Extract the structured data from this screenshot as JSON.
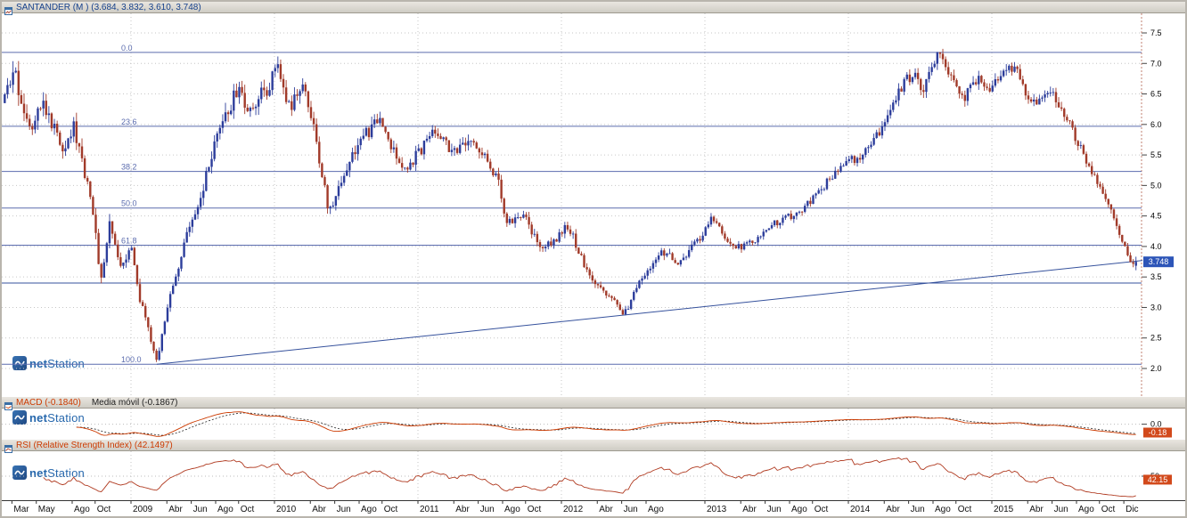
{
  "branding": {
    "bold": "net",
    "rest": "Station"
  },
  "colors": {
    "up": "#2c3d9b",
    "down": "#a13a29",
    "fib": "#5b6cae",
    "trend": "#35519c",
    "grid": "#c6c6c6",
    "macd": "#cc3a00",
    "macd_signal": "#222222",
    "rsi": "#b03a20",
    "badge_main": "#2d55b8",
    "badge_osc": "#d2491b",
    "title_main": "#16418c",
    "title_osc": "#cc3a00"
  },
  "panels": {
    "main": {
      "title": "SANTANDER (M ) (3.684, 3.832, 3.610, 3.748)",
      "price_badge": "3.748"
    },
    "macd": {
      "title": "MACD (-0.1840)",
      "title2": "Media móvil (-0.1867)",
      "badge": "-0.18",
      "zero_label": "0.0"
    },
    "rsi": {
      "title": "RSI (Relative Strength Index) (42.1497)",
      "badge": "42.15",
      "mid_label": "50"
    }
  },
  "time_axis": {
    "labels": [
      {
        "t": 2008.17,
        "label": "Mar"
      },
      {
        "t": 2008.34,
        "label": "May"
      },
      {
        "t": 2008.59,
        "label": "Ago"
      },
      {
        "t": 2008.75,
        "label": "Oct"
      },
      {
        "t": 2009.0,
        "label": "2009"
      },
      {
        "t": 2009.25,
        "label": "Abr"
      },
      {
        "t": 2009.42,
        "label": "Jun"
      },
      {
        "t": 2009.59,
        "label": "Ago"
      },
      {
        "t": 2009.75,
        "label": "Oct"
      },
      {
        "t": 2010.0,
        "label": "2010"
      },
      {
        "t": 2010.25,
        "label": "Abr"
      },
      {
        "t": 2010.42,
        "label": "Jun"
      },
      {
        "t": 2010.59,
        "label": "Ago"
      },
      {
        "t": 2010.75,
        "label": "Oct"
      },
      {
        "t": 2011.0,
        "label": "2011"
      },
      {
        "t": 2011.25,
        "label": "Abr"
      },
      {
        "t": 2011.42,
        "label": "Jun"
      },
      {
        "t": 2011.59,
        "label": "Ago"
      },
      {
        "t": 2011.75,
        "label": "Oct"
      },
      {
        "t": 2012.0,
        "label": "2012"
      },
      {
        "t": 2012.25,
        "label": "Abr"
      },
      {
        "t": 2012.42,
        "label": "Jun"
      },
      {
        "t": 2012.59,
        "label": "Ago"
      },
      {
        "t": 2013.0,
        "label": "2013"
      },
      {
        "t": 2013.25,
        "label": "Abr"
      },
      {
        "t": 2013.42,
        "label": "Jun"
      },
      {
        "t": 2013.59,
        "label": "Ago"
      },
      {
        "t": 2013.75,
        "label": "Oct"
      },
      {
        "t": 2014.0,
        "label": "2014"
      },
      {
        "t": 2014.25,
        "label": "Abr"
      },
      {
        "t": 2014.42,
        "label": "Jun"
      },
      {
        "t": 2014.59,
        "label": "Ago"
      },
      {
        "t": 2014.75,
        "label": "Oct"
      },
      {
        "t": 2015.0,
        "label": "2015"
      },
      {
        "t": 2015.25,
        "label": "Abr"
      },
      {
        "t": 2015.42,
        "label": "Jun"
      },
      {
        "t": 2015.59,
        "label": "Ago"
      },
      {
        "t": 2015.75,
        "label": "Oct"
      },
      {
        "t": 2015.92,
        "label": "Dic"
      }
    ]
  },
  "chart_data": {
    "type": "candlestick",
    "symbol": "SANTANDER",
    "timeframe": "M",
    "last_ohlc": {
      "open": 3.684,
      "high": 3.832,
      "low": 3.61,
      "close": 3.748
    },
    "x_domain": [
      2008.12,
      2016.0
    ],
    "y_domain": [
      2.0,
      7.5
    ],
    "y_ticks": [
      "7.5",
      "7.0",
      "6.5",
      "6.0",
      "5.5",
      "5.0",
      "4.5",
      "4.0",
      "3.5",
      "3.0",
      "2.5",
      "2.0"
    ],
    "fib_levels": [
      {
        "label": "0.0",
        "price": 7.18
      },
      {
        "label": "23.6",
        "price": 5.97
      },
      {
        "label": "38.2",
        "price": 5.23
      },
      {
        "label": "50.0",
        "price": 4.63
      },
      {
        "label": "61.8",
        "price": 4.02
      },
      {
        "label": "100.0",
        "price": 2.07
      }
    ],
    "support_line": {
      "price": 3.4
    },
    "trend_line": {
      "from": [
        2009.18,
        2.07
      ],
      "to": [
        2016.05,
        3.77
      ]
    },
    "indicators": {
      "macd": -0.184,
      "macd_signal": -0.1867,
      "rsi": 42.1497
    },
    "seed": 987654321,
    "volatility_zones": [
      [
        2009.7,
        0.05
      ],
      [
        2010.7,
        0.04
      ],
      [
        2013.0,
        0.036
      ],
      [
        2016.2,
        0.028
      ]
    ],
    "keypoints": [
      [
        2008.12,
        6.35
      ],
      [
        2008.18,
        6.85
      ],
      [
        2008.3,
        5.95
      ],
      [
        2008.36,
        6.45
      ],
      [
        2008.52,
        5.65
      ],
      [
        2008.6,
        5.95
      ],
      [
        2008.72,
        4.85
      ],
      [
        2008.79,
        3.45
      ],
      [
        2008.85,
        4.35
      ],
      [
        2008.93,
        3.7
      ],
      [
        2009.0,
        4.05
      ],
      [
        2009.06,
        3.15
      ],
      [
        2009.18,
        2.1
      ],
      [
        2009.28,
        3.3
      ],
      [
        2009.38,
        4.1
      ],
      [
        2009.46,
        4.55
      ],
      [
        2009.55,
        5.35
      ],
      [
        2009.65,
        6.1
      ],
      [
        2009.74,
        6.55
      ],
      [
        2009.82,
        6.25
      ],
      [
        2009.95,
        6.6
      ],
      [
        2010.02,
        7.0
      ],
      [
        2010.1,
        6.3
      ],
      [
        2010.22,
        6.6
      ],
      [
        2010.38,
        4.55
      ],
      [
        2010.5,
        5.3
      ],
      [
        2010.57,
        5.65
      ],
      [
        2010.74,
        6.1
      ],
      [
        2010.88,
        5.25
      ],
      [
        2011.0,
        5.5
      ],
      [
        2011.1,
        5.95
      ],
      [
        2011.25,
        5.55
      ],
      [
        2011.4,
        5.7
      ],
      [
        2011.55,
        5.15
      ],
      [
        2011.62,
        4.35
      ],
      [
        2011.72,
        4.55
      ],
      [
        2011.85,
        4.0
      ],
      [
        2011.95,
        4.1
      ],
      [
        2012.05,
        4.35
      ],
      [
        2012.2,
        3.45
      ],
      [
        2012.32,
        3.2
      ],
      [
        2012.44,
        2.9
      ],
      [
        2012.55,
        3.45
      ],
      [
        2012.7,
        3.95
      ],
      [
        2012.82,
        3.7
      ],
      [
        2012.95,
        4.1
      ],
      [
        2013.05,
        4.45
      ],
      [
        2013.2,
        3.95
      ],
      [
        2013.35,
        4.1
      ],
      [
        2013.5,
        4.4
      ],
      [
        2013.65,
        4.55
      ],
      [
        2013.8,
        4.9
      ],
      [
        2013.95,
        5.35
      ],
      [
        2014.05,
        5.45
      ],
      [
        2014.15,
        5.6
      ],
      [
        2014.25,
        6.05
      ],
      [
        2014.35,
        6.55
      ],
      [
        2014.45,
        6.85
      ],
      [
        2014.52,
        6.6
      ],
      [
        2014.62,
        7.15
      ],
      [
        2014.72,
        6.7
      ],
      [
        2014.8,
        6.4
      ],
      [
        2014.9,
        6.75
      ],
      [
        2015.0,
        6.55
      ],
      [
        2015.08,
        6.95
      ],
      [
        2015.18,
        6.85
      ],
      [
        2015.28,
        6.3
      ],
      [
        2015.38,
        6.6
      ],
      [
        2015.48,
        6.3
      ],
      [
        2015.58,
        5.8
      ],
      [
        2015.68,
        5.3
      ],
      [
        2015.78,
        4.8
      ],
      [
        2015.88,
        4.3
      ],
      [
        2015.96,
        3.75
      ],
      [
        2016.0,
        3.748
      ]
    ]
  }
}
